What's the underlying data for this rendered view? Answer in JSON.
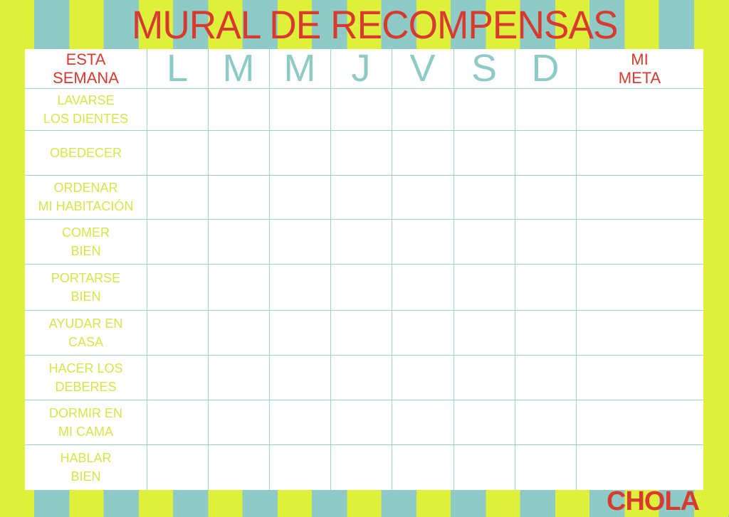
{
  "title": "MURAL DE RECOMPENSAS",
  "header": {
    "left_line1": "ESTA",
    "left_line2": "SEMANA",
    "right_line1": "MI",
    "right_line2": "META"
  },
  "days": [
    "L",
    "M",
    "M",
    "J",
    "V",
    "S",
    "D"
  ],
  "tasks": [
    [
      "LAVARSE",
      "LOS DIENTES"
    ],
    [
      "OBEDECER",
      ""
    ],
    [
      "ORDENAR",
      "MI HABITACIÓN"
    ],
    [
      "COMER",
      "BIEN"
    ],
    [
      "PORTARSE",
      "BIEN"
    ],
    [
      "AYUDAR EN",
      "CASA"
    ],
    [
      "HACER LOS",
      "DEBERES"
    ],
    [
      "DORMIR EN",
      "MI CAMA"
    ],
    [
      "HABLAR",
      "BIEN"
    ]
  ],
  "brand": "CHOLA",
  "colors": {
    "lime": "#dff03a",
    "teal": "#8ecac6",
    "red": "#d93a30"
  }
}
